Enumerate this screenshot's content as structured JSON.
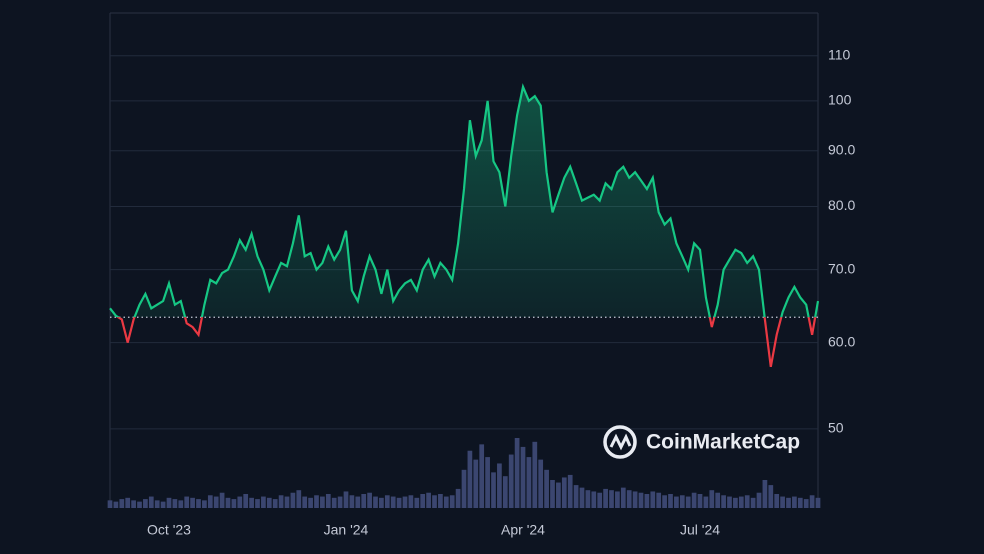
{
  "chart_data": {
    "type": "line",
    "watermark": "CoinMarketCap",
    "categories": [
      null,
      null,
      null,
      null,
      null,
      null,
      null,
      null,
      null,
      null,
      "Oct '23",
      null,
      null,
      null,
      null,
      null,
      null,
      null,
      null,
      null,
      null,
      null,
      null,
      null,
      null,
      null,
      null,
      null,
      null,
      null,
      null,
      null,
      null,
      null,
      null,
      null,
      null,
      null,
      null,
      null,
      "Jan '24",
      null,
      null,
      null,
      null,
      null,
      null,
      null,
      null,
      null,
      null,
      null,
      null,
      null,
      null,
      null,
      null,
      null,
      null,
      null,
      null,
      null,
      null,
      null,
      null,
      null,
      null,
      null,
      null,
      null,
      "Apr '24",
      null,
      null,
      null,
      null,
      null,
      null,
      null,
      null,
      null,
      null,
      null,
      null,
      null,
      null,
      null,
      null,
      null,
      null,
      null,
      null,
      null,
      null,
      null,
      null,
      null,
      null,
      null,
      null,
      null,
      "Jul '24",
      null,
      null,
      null,
      null,
      null,
      null,
      null,
      null,
      null,
      null,
      null,
      null,
      null,
      null,
      null,
      null,
      null,
      null,
      null,
      null
    ],
    "values": [
      64.5,
      63.5,
      63,
      60,
      63,
      65,
      66.5,
      64.5,
      65,
      65.5,
      68,
      65,
      65.5,
      62.5,
      62,
      61,
      65,
      68.5,
      68,
      69.5,
      70,
      72,
      74.5,
      73,
      75.5,
      72,
      70,
      67,
      69,
      71,
      70.5,
      74,
      78.5,
      72,
      72.5,
      70,
      71,
      73.5,
      71.5,
      73,
      76,
      67,
      65.5,
      69,
      72,
      70,
      66.5,
      70,
      65.5,
      67,
      68,
      68.5,
      67,
      70,
      71.5,
      69,
      71,
      70,
      68.5,
      74,
      83,
      96,
      89,
      92,
      100,
      88,
      86,
      80,
      89,
      97,
      103,
      100,
      101,
      99,
      86,
      79,
      82,
      85,
      87,
      84,
      81,
      81.5,
      82,
      81,
      84,
      83,
      86,
      87,
      85,
      86,
      84.5,
      83,
      85,
      79,
      77,
      78,
      74,
      72,
      70,
      74,
      73,
      66,
      62,
      65,
      70,
      71.5,
      73,
      72.5,
      71,
      72,
      70,
      63,
      57,
      61,
      64,
      66,
      67.5,
      66,
      65,
      61,
      65.5
    ],
    "volume": [
      6,
      5,
      7,
      8,
      6,
      5,
      7,
      9,
      6,
      5,
      8,
      7,
      6,
      9,
      8,
      7,
      6,
      10,
      9,
      12,
      8,
      7,
      9,
      11,
      8,
      7,
      9,
      8,
      7,
      10,
      9,
      12,
      14,
      9,
      8,
      10,
      9,
      11,
      8,
      9,
      13,
      10,
      9,
      11,
      12,
      9,
      8,
      10,
      9,
      8,
      9,
      10,
      8,
      11,
      12,
      10,
      11,
      9,
      10,
      15,
      30,
      45,
      38,
      50,
      40,
      28,
      35,
      25,
      42,
      55,
      48,
      40,
      52,
      38,
      30,
      22,
      20,
      24,
      26,
      18,
      16,
      14,
      13,
      12,
      15,
      14,
      13,
      16,
      14,
      13,
      12,
      11,
      13,
      12,
      10,
      11,
      9,
      10,
      9,
      12,
      11,
      9,
      14,
      12,
      10,
      9,
      8,
      9,
      10,
      8,
      12,
      22,
      18,
      11,
      9,
      8,
      9,
      8,
      7,
      10,
      8
    ],
    "baseline": 63.3,
    "up_color": "#16c784",
    "down_color": "#ea3943",
    "volume_color": "#3b4670",
    "log_scale": true,
    "ylim": [
      42.3,
      120.4
    ],
    "yticks": [
      50,
      {
        "value": 60,
        "label": "60.0"
      },
      {
        "value": 70,
        "label": "70.0"
      },
      {
        "value": 80,
        "label": "80.0"
      },
      {
        "value": 90,
        "label": "90.0"
      },
      100,
      110
    ],
    "grid": true
  }
}
